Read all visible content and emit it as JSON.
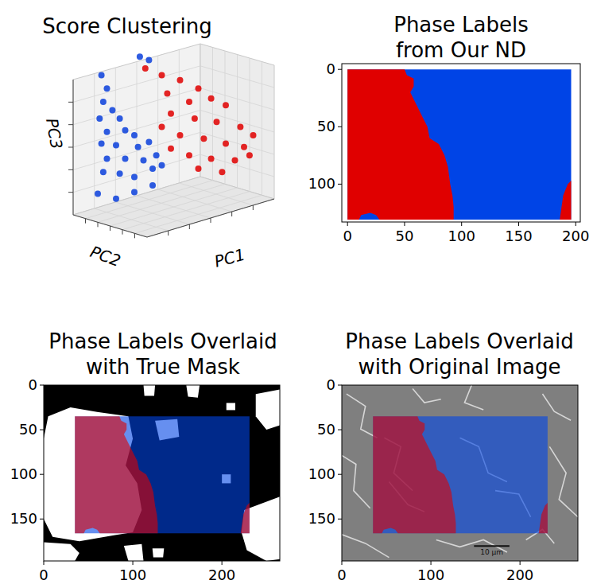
{
  "chart_data": [
    {
      "type": "scatter",
      "title": "Score Clustering",
      "x_label": "PC1",
      "y_label": "PC2",
      "z_label": "PC3",
      "xlim": [
        0,
        10
      ],
      "ylim": [
        0,
        10
      ],
      "tick_labels": false,
      "grid": true,
      "marker": "circle",
      "series": [
        {
          "color": "#0a3fdc",
          "x": [
            1.2,
            1.5,
            1.3,
            1.8,
            1.1,
            2.2,
            1.5,
            2.5,
            3.0,
            1.2,
            2.0,
            3.2,
            3.8,
            1.5,
            2.5,
            3.5,
            4.2,
            1.3,
            2.2,
            3.0,
            4.0,
            4.5,
            3.3,
            3.8,
            1.0,
            2.0,
            3.0,
            4.0
          ],
          "values": [
            8.6,
            7.8,
            7.0,
            6.5,
            6.0,
            6.0,
            5.2,
            5.3,
            5.0,
            4.5,
            4.4,
            4.3,
            4.6,
            3.6,
            3.6,
            3.5,
            3.8,
            2.8,
            2.7,
            2.5,
            3.0,
            3.2,
            9.7,
            9.5,
            1.5,
            1.2,
            1.6,
            2.0
          ]
        },
        {
          "color": "#e00000",
          "x": [
            3.6,
            4.5,
            5.5,
            6.5,
            4.8,
            6.0,
            7.2,
            8.0,
            5.0,
            6.3,
            7.5,
            8.8,
            9.5,
            4.5,
            5.5,
            6.8,
            8.0,
            9.0,
            5.0,
            6.0,
            7.2,
            8.5,
            9.3,
            6.5,
            7.8
          ],
          "values": [
            9.0,
            8.6,
            8.3,
            7.8,
            7.5,
            7.0,
            7.2,
            6.8,
            6.3,
            6.0,
            5.8,
            5.5,
            5.0,
            5.5,
            5.0,
            4.8,
            4.5,
            4.3,
            4.2,
            3.8,
            3.6,
            3.5,
            3.8,
            3.0,
            2.8
          ]
        }
      ]
    },
    {
      "type": "segmentation",
      "title": "Phase Labels from Our ND",
      "xlim": [
        -5,
        204
      ],
      "ylim": [
        133,
        -5
      ],
      "xticks": [
        0,
        50,
        100,
        150,
        200
      ],
      "yticks": [
        0,
        50,
        100
      ],
      "series": [
        {
          "color": "#0044e6",
          "x": [
            0,
            196,
            196,
            0
          ],
          "values": [
            0,
            0,
            131,
            131
          ]
        },
        {
          "color": "#e00000",
          "x": [
            0,
            50,
            52,
            58,
            58,
            55,
            60,
            65,
            70,
            72,
            80,
            85,
            88,
            90,
            92,
            93,
            93,
            28,
            25,
            20,
            12,
            10,
            0
          ],
          "values": [
            0,
            0,
            5,
            8,
            15,
            20,
            30,
            40,
            50,
            60,
            65,
            75,
            85,
            100,
            110,
            120,
            131,
            131,
            127,
            125,
            127,
            131,
            131
          ]
        },
        {
          "color": "#e00000",
          "x": [
            186,
            189,
            193,
            196,
            196
          ],
          "values": [
            131,
            110,
            100,
            97,
            131
          ]
        }
      ]
    },
    {
      "type": "mask_overlay",
      "title": "Phase Labels Overlaid with True Mask",
      "xlim": [
        0,
        265
      ],
      "ylim": [
        197,
        0
      ],
      "xticks": [
        0,
        100,
        200
      ],
      "yticks": [
        0,
        50,
        100,
        150
      ],
      "mask_regions": [
        {
          "x": [
            5,
            30,
            60,
            95,
            100,
            92,
            105,
            110,
            100,
            80,
            40,
            10,
            0,
            0
          ],
          "y": [
            35,
            25,
            30,
            35,
            60,
            90,
            110,
            140,
            165,
            168,
            175,
            170,
            150,
            60
          ]
        },
        {
          "x": [
            112,
            125,
            124,
            113
          ],
          "y": [
            0,
            0,
            12,
            12
          ]
        },
        {
          "x": [
            238,
            265,
            265,
            250,
            238
          ],
          "y": [
            10,
            5,
            45,
            50,
            35
          ]
        },
        {
          "x": [
            205,
            215,
            215,
            205
          ],
          "y": [
            20,
            20,
            28,
            28
          ]
        },
        {
          "x": [
            225,
            265,
            265,
            250,
            228,
            222
          ],
          "y": [
            140,
            125,
            195,
            197,
            185,
            165
          ]
        },
        {
          "x": [
            0,
            30,
            40,
            35,
            0
          ],
          "y": [
            176,
            178,
            188,
            197,
            197
          ]
        },
        {
          "x": [
            90,
            110,
            112,
            95
          ],
          "y": [
            180,
            178,
            197,
            197
          ]
        },
        {
          "x": [
            122,
            135,
            134,
            123
          ],
          "y": [
            183,
            183,
            193,
            193
          ]
        },
        {
          "x": [
            125,
            150,
            152,
            130
          ],
          "y": [
            40,
            38,
            58,
            62
          ]
        },
        {
          "x": [
            160,
            175,
            173,
            162
          ],
          "y": [
            0,
            0,
            14,
            13
          ]
        },
        {
          "x": [
            200,
            210,
            210,
            200
          ],
          "y": [
            100,
            100,
            110,
            110
          ]
        }
      ],
      "series": [
        {
          "color": "#0044e6",
          "x": [
            35,
            231,
            231,
            35
          ],
          "values": [
            35,
            35,
            166,
            166
          ]
        },
        {
          "color": "#e00000",
          "x": [
            35,
            85,
            87,
            93,
            93,
            90,
            95,
            100,
            105,
            107,
            115,
            120,
            123,
            125,
            127,
            128,
            128,
            63,
            60,
            55,
            47,
            45,
            35
          ],
          "values": [
            35,
            35,
            40,
            43,
            50,
            55,
            65,
            75,
            85,
            95,
            100,
            110,
            120,
            135,
            145,
            155,
            166,
            166,
            162,
            160,
            162,
            166,
            166
          ]
        },
        {
          "color": "#e00000",
          "x": [
            221,
            224,
            228,
            231,
            231
          ],
          "values": [
            166,
            145,
            135,
            132,
            166
          ]
        }
      ]
    },
    {
      "type": "image_overlay",
      "title": "Phase Labels Overlaid with Original Image",
      "xlim": [
        0,
        265
      ],
      "ylim": [
        197,
        0
      ],
      "xticks": [
        0,
        100,
        200
      ],
      "yticks": [
        0,
        50,
        100,
        150
      ],
      "annotation": "10 μm",
      "series": [
        {
          "color": "#0044e6",
          "x": [
            35,
            231,
            231,
            35
          ],
          "values": [
            35,
            35,
            166,
            166
          ]
        },
        {
          "color": "#e00000",
          "x": [
            35,
            85,
            87,
            93,
            93,
            90,
            95,
            100,
            105,
            107,
            115,
            120,
            123,
            125,
            127,
            128,
            128,
            63,
            60,
            55,
            47,
            45,
            35
          ],
          "values": [
            35,
            35,
            40,
            43,
            50,
            55,
            65,
            75,
            85,
            95,
            100,
            110,
            120,
            135,
            145,
            155,
            166,
            166,
            162,
            160,
            162,
            166,
            166
          ]
        },
        {
          "color": "#e00000",
          "x": [
            221,
            224,
            228,
            231,
            231
          ],
          "values": [
            166,
            145,
            135,
            132,
            166
          ]
        }
      ]
    }
  ]
}
